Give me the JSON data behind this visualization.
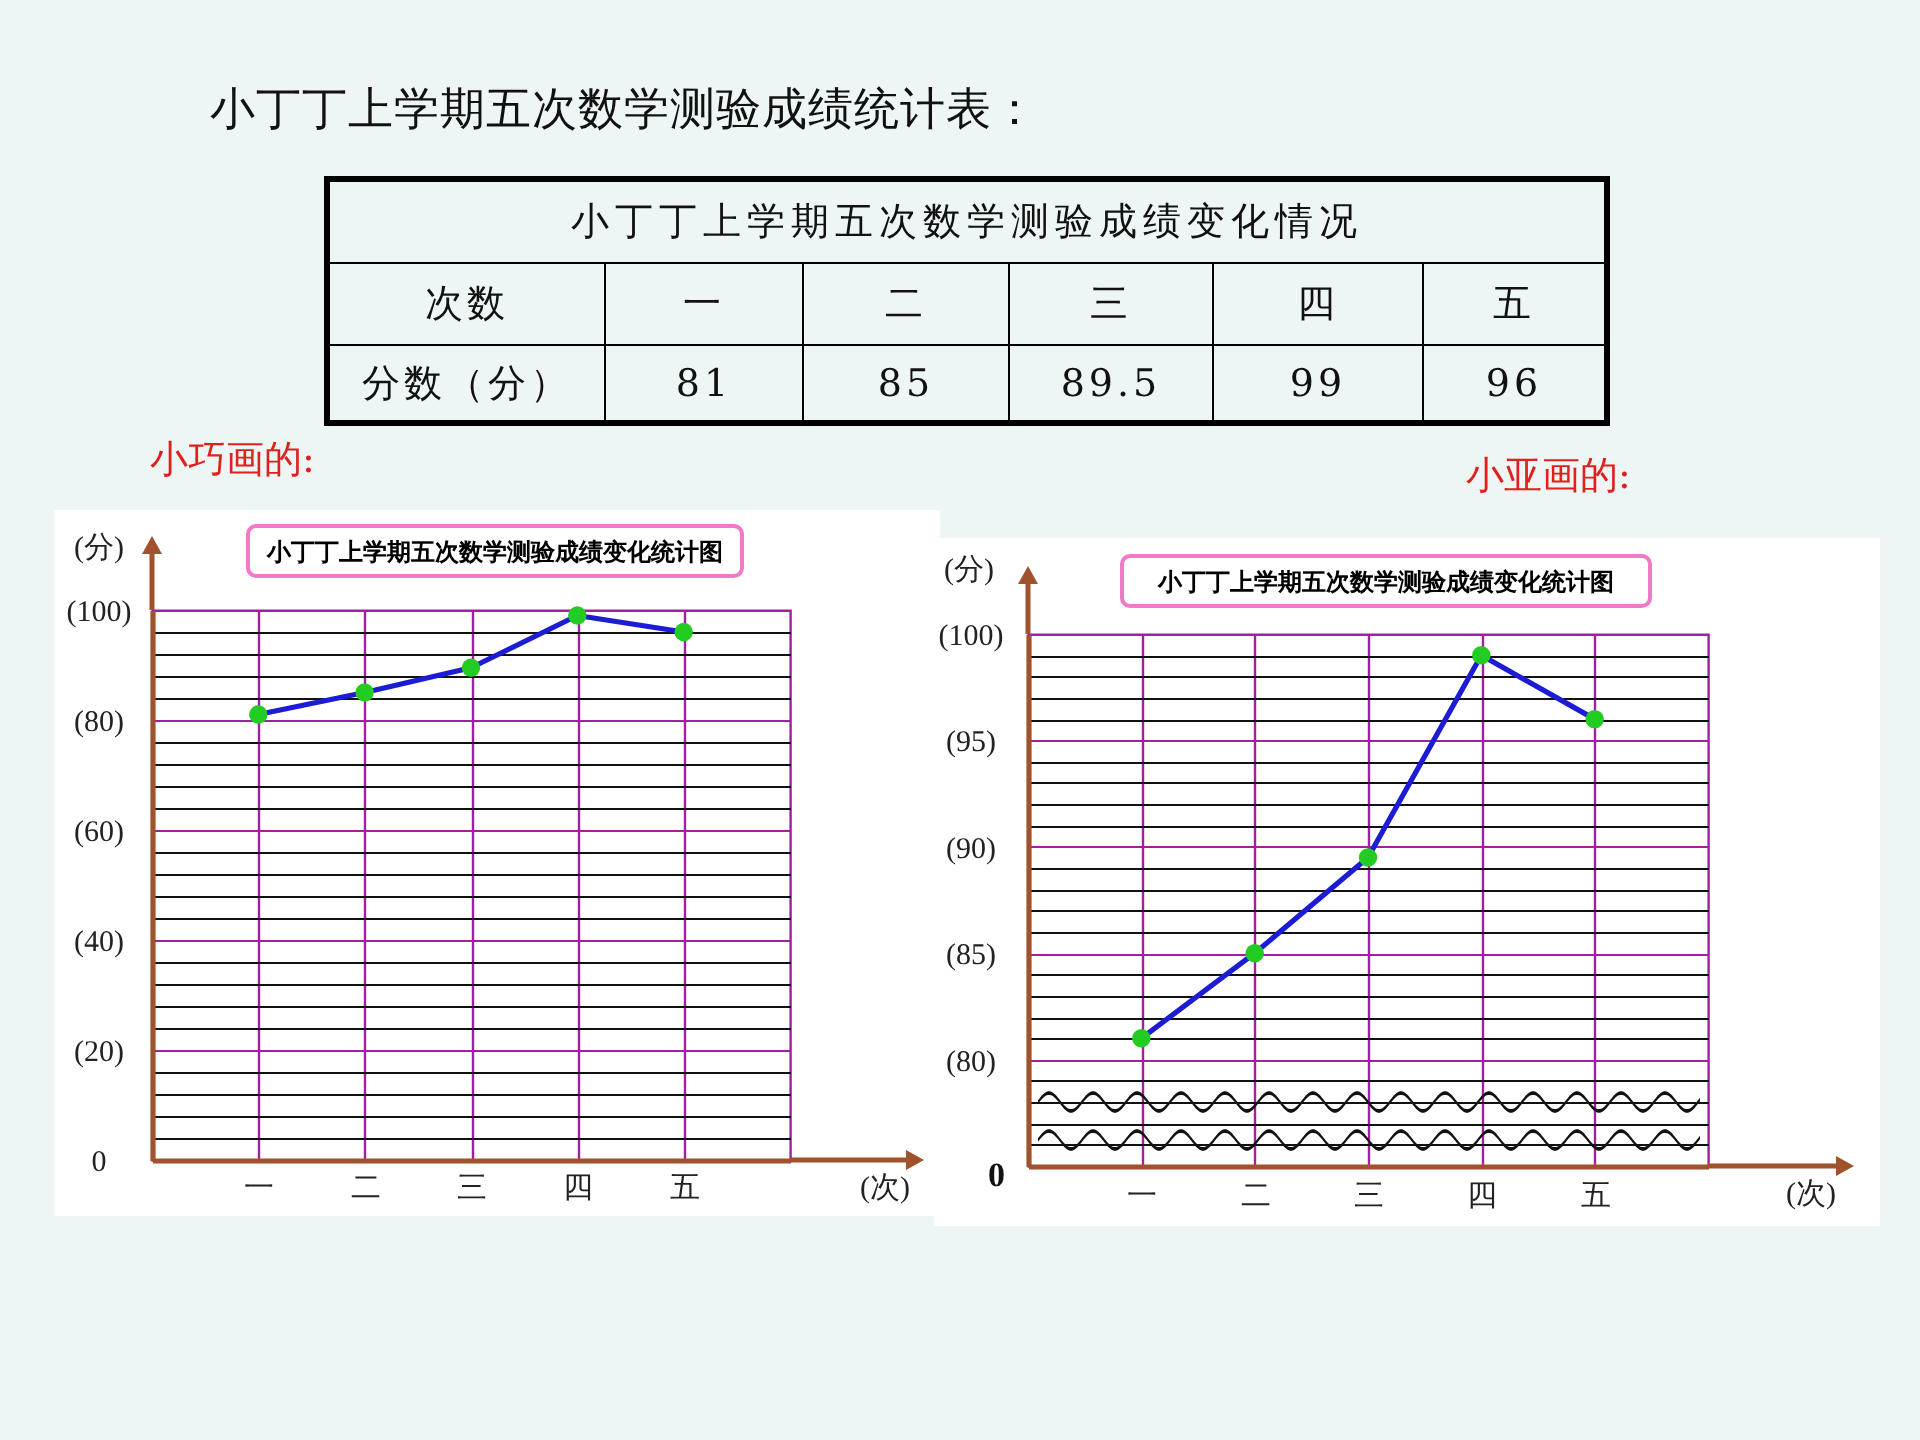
{
  "chart_data": [
    {
      "type": "other",
      "title": "小丁丁上学期五次数学测验成绩统计表：",
      "subtitle": "小丁丁上学期五次数学测验成绩变化情况",
      "xlabel": "次数",
      "ylabel": "分数（分）",
      "categories": [
        "一",
        "二",
        "三",
        "四",
        "五"
      ],
      "values": [
        81,
        85,
        89.5,
        99,
        96
      ],
      "data_labels": true
    },
    {
      "type": "line",
      "title": "小丁丁上学期五次数学测验成绩变化统计图",
      "xlabel": "(次)",
      "ylabel": "(分)",
      "annotations": [
        "小巧画的:"
      ],
      "categories": [
        "一",
        "二",
        "三",
        "四",
        "五"
      ],
      "series": [
        {
          "type": "line",
          "color": "#1c1cd4",
          "marker": "none",
          "line_style": "solid",
          "values": [
            81,
            85,
            89.5,
            99,
            96
          ]
        },
        {
          "type": "scatter",
          "color": "#22cc22",
          "marker": "circle",
          "values": [
            81,
            85,
            89.5,
            99,
            96
          ]
        }
      ],
      "ylim": [
        0,
        100
      ],
      "yticks": [
        0,
        {
          "value": 4,
          "label": null
        },
        {
          "value": 8,
          "label": null
        },
        {
          "value": 12,
          "label": null
        },
        {
          "value": 16,
          "label": null
        },
        {
          "value": 20,
          "label": "(20)"
        },
        {
          "value": 24,
          "label": null
        },
        {
          "value": 28,
          "label": null
        },
        {
          "value": 32,
          "label": null
        },
        {
          "value": 36,
          "label": null
        },
        {
          "value": 40,
          "label": "(40)"
        },
        {
          "value": 44,
          "label": null
        },
        {
          "value": 48,
          "label": null
        },
        {
          "value": 52,
          "label": null
        },
        {
          "value": 56,
          "label": null
        },
        {
          "value": 60,
          "label": "(60)"
        },
        {
          "value": 64,
          "label": null
        },
        {
          "value": 68,
          "label": null
        },
        {
          "value": 72,
          "label": null
        },
        {
          "value": 76,
          "label": null
        },
        {
          "value": 80,
          "label": "(80)"
        },
        {
          "value": 84,
          "label": null
        },
        {
          "value": 88,
          "label": null
        },
        {
          "value": 92,
          "label": null
        },
        {
          "value": 96,
          "label": null
        },
        {
          "value": 100,
          "label": "(100)"
        }
      ],
      "grid": true
    },
    {
      "type": "line",
      "title": "小丁丁上学期五次数学测验成绩变化统计图",
      "xlabel": "(次)",
      "ylabel": "(分)",
      "annotations": [
        "小亚画的:",
        "0"
      ],
      "categories": [
        "一",
        "二",
        "三",
        "四",
        "五"
      ],
      "series": [
        {
          "type": "line",
          "color": "#1c1cd4",
          "marker": "none",
          "line_style": "solid",
          "values": [
            81,
            85,
            89.5,
            99,
            96
          ]
        },
        {
          "type": "scatter",
          "color": "#22cc22",
          "marker": "circle",
          "values": [
            81,
            85,
            89.5,
            99,
            96
          ]
        }
      ],
      "ylim": [
        75,
        100
      ],
      "yticks": [
        {
          "value": 76,
          "label": null
        },
        {
          "value": 77,
          "label": null
        },
        {
          "value": 78,
          "label": null
        },
        {
          "value": 79,
          "label": null
        },
        {
          "value": 80,
          "label": "(80)"
        },
        {
          "value": 81,
          "label": null
        },
        {
          "value": 82,
          "label": null
        },
        {
          "value": 83,
          "label": null
        },
        {
          "value": 84,
          "label": null
        },
        {
          "value": 85,
          "label": "(85)"
        },
        {
          "value": 86,
          "label": null
        },
        {
          "value": 87,
          "label": null
        },
        {
          "value": 88,
          "label": null
        },
        {
          "value": 89,
          "label": null
        },
        {
          "value": 90,
          "label": "(90)"
        },
        {
          "value": 91,
          "label": null
        },
        {
          "value": 92,
          "label": null
        },
        {
          "value": 93,
          "label": null
        },
        {
          "value": 94,
          "label": null
        },
        {
          "value": 95,
          "label": "(95)"
        },
        {
          "value": 96,
          "label": null
        },
        {
          "value": 97,
          "label": null
        },
        {
          "value": 98,
          "label": null
        },
        {
          "value": 99,
          "label": null
        },
        {
          "value": 100,
          "label": "(100)"
        }
      ],
      "grid": true
    }
  ]
}
